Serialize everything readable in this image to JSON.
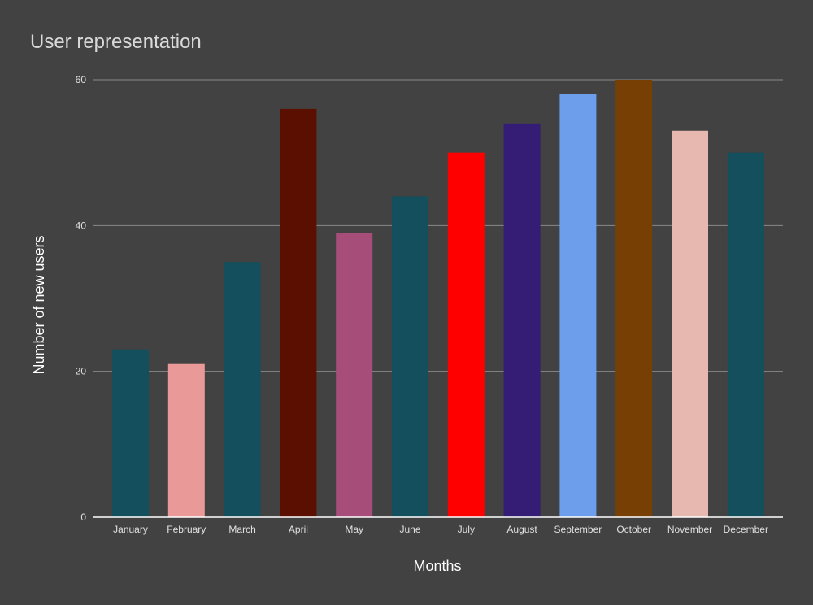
{
  "chart_data": {
    "type": "bar",
    "title": "User representation",
    "xlabel": "Months",
    "ylabel": "Number of new users",
    "categories": [
      "January",
      "February",
      "March",
      "April",
      "May",
      "June",
      "July",
      "August",
      "September",
      "October",
      "November",
      "December"
    ],
    "values": [
      23,
      21,
      35,
      56,
      39,
      44,
      50,
      54,
      58,
      60,
      53,
      50
    ],
    "colors": [
      "#134f5c",
      "#ea9999",
      "#134f5c",
      "#5b0f00",
      "#a64d79",
      "#134f5c",
      "#ff0000",
      "#351c75",
      "#6d9eeb",
      "#783f04",
      "#e6b8af",
      "#134f5c"
    ],
    "ylim": [
      0,
      60
    ],
    "yticks": [
      0,
      20,
      40,
      60
    ],
    "grid": true,
    "legend": "none"
  }
}
